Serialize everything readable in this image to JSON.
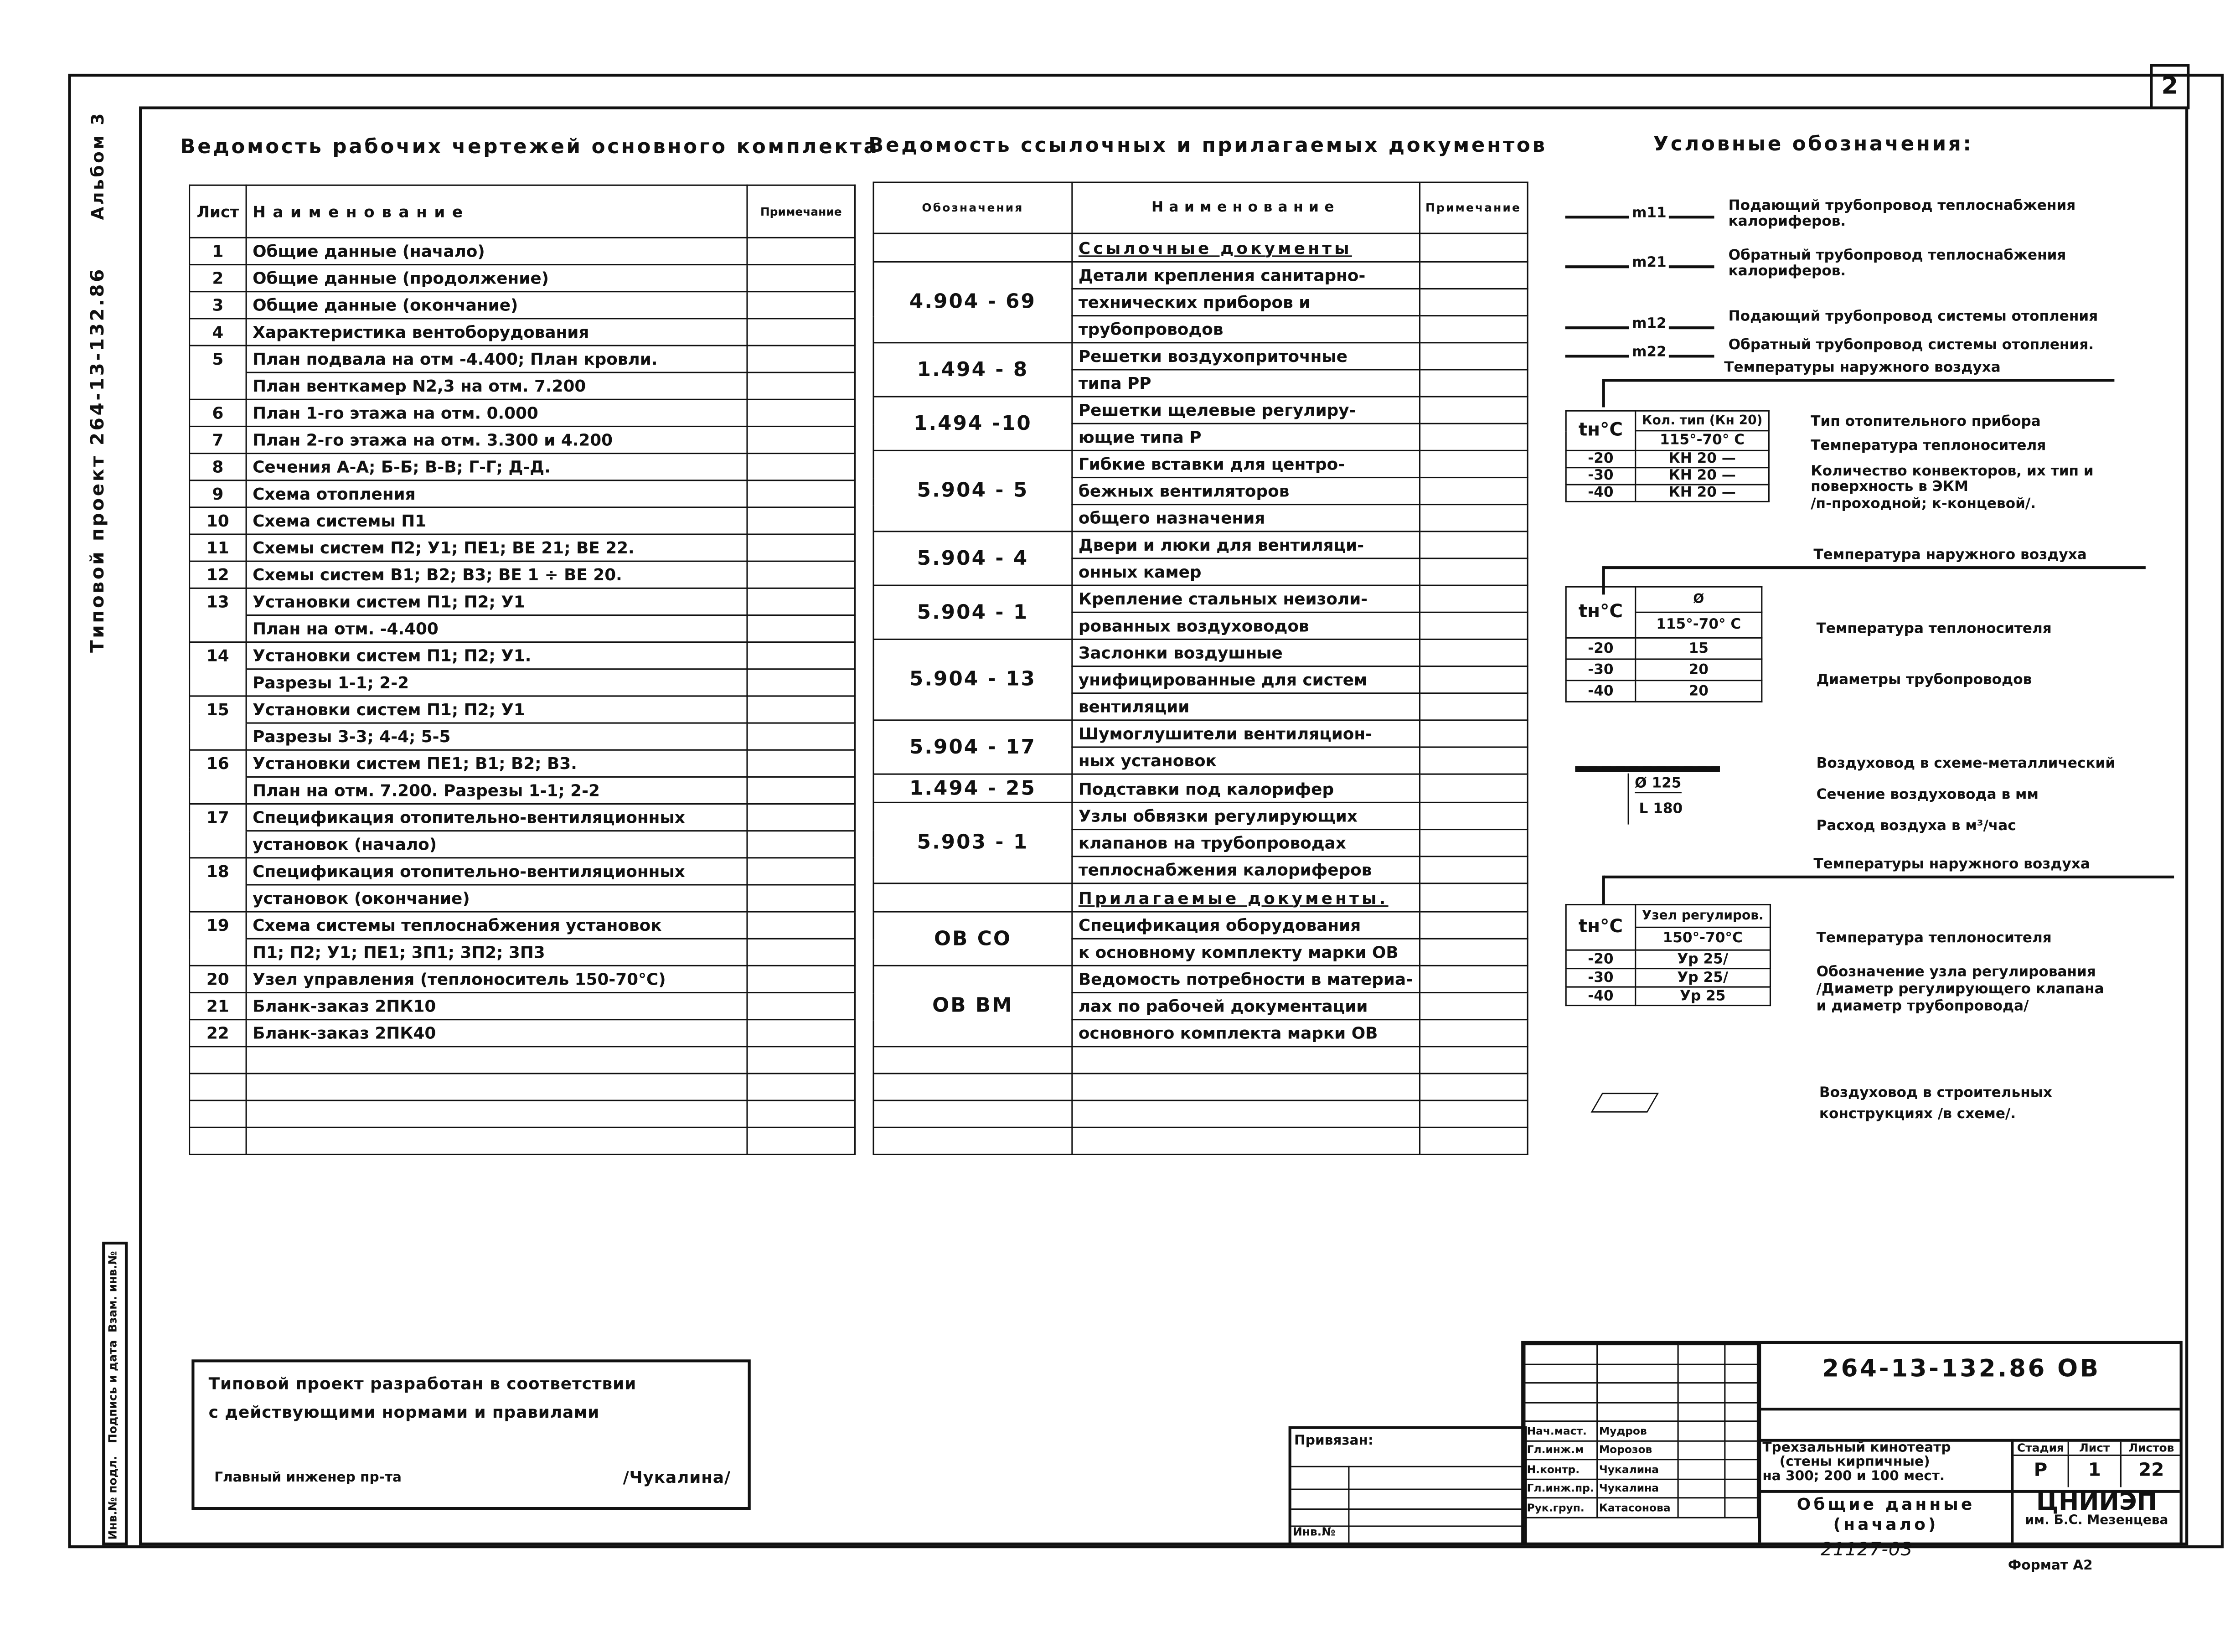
{
  "sheet_number": "2",
  "margin": {
    "project": "Типовой проект  264-13-132.86",
    "album": "Альбом 3",
    "stamp_cells": [
      "Инв.№ подл.",
      "Подпись и дата",
      "Взам. инв.№"
    ]
  },
  "drawings_list": {
    "title": "Ведомость рабочих чертежей основного комплекта",
    "headers": [
      "Лист",
      "Наименование",
      "Примечание"
    ],
    "rows": [
      {
        "num": "1",
        "lines": [
          "Общие данные  (начало)"
        ]
      },
      {
        "num": "2",
        "lines": [
          "Общие данные  (продолжение)"
        ]
      },
      {
        "num": "3",
        "lines": [
          "Общие данные  (окончание)"
        ]
      },
      {
        "num": "4",
        "lines": [
          "Характеристика вентоборудования"
        ]
      },
      {
        "num": "5",
        "lines": [
          "План подвала на отм -4.400; План кровли.",
          "План венткамер N2,3 на отм. 7.200"
        ]
      },
      {
        "num": "6",
        "lines": [
          "План 1-го этажа на отм. 0.000"
        ]
      },
      {
        "num": "7",
        "lines": [
          "План 2-го этажа на отм. 3.300 и 4.200"
        ]
      },
      {
        "num": "8",
        "lines": [
          "Сечения А-А; Б-Б; В-В; Г-Г; Д-Д."
        ]
      },
      {
        "num": "9",
        "lines": [
          "Схема отопления"
        ]
      },
      {
        "num": "10",
        "lines": [
          "Схема  системы П1"
        ]
      },
      {
        "num": "11",
        "lines": [
          "Схемы систем П2; У1; ПЕ1; ВЕ 21; ВЕ 22."
        ]
      },
      {
        "num": "12",
        "lines": [
          "Схемы систем В1; В2; В3; ВЕ 1 ÷ ВЕ 20."
        ]
      },
      {
        "num": "13",
        "lines": [
          "Установки систем  П1; П2; У1",
          "План на отм. -4.400"
        ]
      },
      {
        "num": "14",
        "lines": [
          "Установки систем  П1; П2; У1.",
          "Разрезы 1-1; 2-2"
        ]
      },
      {
        "num": "15",
        "lines": [
          "Установки  систем  П1; П2; У1",
          "Разрезы 3-3; 4-4; 5-5"
        ]
      },
      {
        "num": "16",
        "lines": [
          "Установки систем ПЕ1; В1; В2; В3.",
          "План на отм. 7.200. Разрезы 1-1; 2-2"
        ]
      },
      {
        "num": "17",
        "lines": [
          "Спецификация отопительно-вентиляционных",
          "установок  (начало)"
        ]
      },
      {
        "num": "18",
        "lines": [
          "Спецификация отопительно-вентиляционных",
          "установок (окончание)"
        ]
      },
      {
        "num": "19",
        "lines": [
          "Схема системы теплоснабжения установок",
          "П1; П2; У1; ПЕ1; 3П1; 3П2; 3П3"
        ]
      },
      {
        "num": "20",
        "lines": [
          "Узел управления (теплоноситель 150-70°С)"
        ]
      },
      {
        "num": "21",
        "lines": [
          "Бланк-заказ  2ПК10"
        ]
      },
      {
        "num": "22",
        "lines": [
          "Бланк-заказ  2ПК40"
        ]
      }
    ]
  },
  "references_list": {
    "title": "Ведомость ссылочных и прилагаемых документов",
    "headers": [
      "Обозначения",
      "Наименование",
      "Примечание"
    ],
    "groups": [
      {
        "code": "",
        "heading": true,
        "lines": [
          "Ссылочные документы"
        ]
      },
      {
        "code": "4.904 - 69",
        "lines": [
          "Детали крепления санитарно-",
          "технических приборов и",
          "трубопроводов"
        ]
      },
      {
        "code": "1.494 - 8",
        "lines": [
          "Решетки воздухоприточные",
          "типа РР"
        ]
      },
      {
        "code": "1.494 -10",
        "lines": [
          "Решетки щелевые регулиру-",
          "ющие типа Р"
        ]
      },
      {
        "code": "5.904 - 5",
        "lines": [
          "Гибкие вставки для центро-",
          "бежных вентиляторов",
          "общего назначения"
        ]
      },
      {
        "code": "5.904 - 4",
        "lines": [
          "Двери и люки для вентиляци-",
          "онных камер"
        ]
      },
      {
        "code": "5.904 - 1",
        "lines": [
          "Крепление стальных неизоли-",
          "рованных воздуховодов"
        ]
      },
      {
        "code": "5.904 - 13",
        "lines": [
          "Заслонки воздушные",
          "унифицированные для систем",
          "вентиляции"
        ]
      },
      {
        "code": "5.904 - 17",
        "lines": [
          "Шумоглушители вентиляцион-",
          "ных установок"
        ]
      },
      {
        "code": "1.494 - 25",
        "lines": [
          "Подставки под калорифер"
        ]
      },
      {
        "code": "5.903 - 1",
        "lines": [
          "Узлы обвязки регулирующих",
          "клапанов на трубопроводах",
          "теплоснабжения калориферов"
        ]
      },
      {
        "code": "",
        "heading": true,
        "lines": [
          "Прилагаемые документы."
        ]
      },
      {
        "code": "ОВ СО",
        "lines": [
          "Спецификация оборудования",
          "к основному комплекту марки ОВ"
        ]
      },
      {
        "code": "ОВ ВМ",
        "lines": [
          "Ведомость потребности в материа-",
          "лах по рабочей документации",
          "основного комплекта марки ОВ"
        ]
      }
    ]
  },
  "legend": {
    "title": "Условные обозначения:",
    "pipes": [
      {
        "code": "m11",
        "text": [
          "Подающий трубопровод теплоснабжения",
          "калориферов."
        ]
      },
      {
        "code": "m21",
        "text": [
          "Обратный трубопровод теплоснабжения",
          "калориферов."
        ]
      },
      {
        "code": "m12",
        "text": [
          "Подающий трубопровод системы отопления"
        ]
      },
      {
        "code": "m22",
        "text": [
          "Обратный трубопровод системы отопления."
        ]
      }
    ],
    "captions": [
      "Температуры наружного воздуха",
      "Температура наружного воздуха",
      "Температуры наружного воздуха"
    ],
    "table1": {
      "th": "tн°С",
      "h1": "Кол. тип (Кн 20)",
      "h2": "115°-70° С",
      "rows": [
        [
          "-20",
          "КН 20 —"
        ],
        [
          "-30",
          "КН 20 —"
        ],
        [
          "-40",
          "КН 20 —"
        ]
      ],
      "labels": [
        "Тип отопительного прибора",
        "Температура теплоносителя",
        "Количество конвекторов, их тип и",
        "поверхность в ЭКМ",
        "/п-проходной; к-концевой/."
      ]
    },
    "table2": {
      "th": "tн°С",
      "h1": "Ø",
      "h2": "115°-70° С",
      "rows": [
        [
          "-20",
          "15"
        ],
        [
          "-30",
          "20"
        ],
        [
          "-40",
          "20"
        ]
      ],
      "labels": [
        "Температура теплоносителя",
        "Диаметры трубопроводов"
      ]
    },
    "duct": {
      "d": "Ø 125",
      "l": "L 180",
      "labels": [
        "Воздуховод в схеме-металлический",
        "Сечение воздуховода в мм",
        "Расход воздуха в м³/час"
      ]
    },
    "table3": {
      "th": "tн°С",
      "h1": "Узел регулиров.",
      "h2": "150°-70°С",
      "rows": [
        [
          "-20",
          "Ур 25/"
        ],
        [
          "-30",
          "Ур 25/"
        ],
        [
          "-40",
          "Ур 25"
        ]
      ],
      "labels": [
        "Температура теплоносителя",
        "Обозначение узла регулирования",
        "/Диаметр регулирующего клапана",
        "и диаметр трубопровода/"
      ]
    },
    "building_duct": [
      "Воздуховод в строительных",
      "конструкциях  /в схеме/."
    ]
  },
  "note_box": {
    "lines": [
      "Типовой проект разработан в соответствии",
      "с действующими нормами и правилами"
    ],
    "chief_label": "Главный инженер пр-та",
    "chief_name": "/Чукалина/"
  },
  "binding": {
    "label": "Привязан:",
    "inv": "Инв.№"
  },
  "title_block": {
    "code": "264-13-132.86   ОВ",
    "signatures": [
      [
        "Нач.маст.",
        "Мудров"
      ],
      [
        "Гл.инж.м",
        "Морозов"
      ],
      [
        "Н.контр.",
        "Чукалина"
      ],
      [
        "Гл.инж.пр.",
        "Чукалина"
      ],
      [
        "Рук.груп.",
        "Катасонова"
      ]
    ],
    "project": [
      "Трехзальный кинотеатр",
      "(стены кирпичные)",
      "на 300; 200 и 100 мест."
    ],
    "stage_headers": [
      "Стадия",
      "Лист",
      "Листов"
    ],
    "stage_values": [
      "Р",
      "1",
      "22"
    ],
    "sheet_title": [
      "Общие данные",
      "(начало)"
    ],
    "org": [
      "ЦНИИЭП",
      "им. Б.С. Мезенцева"
    ],
    "archive_no": "21127-03",
    "format": "Формат А2"
  }
}
